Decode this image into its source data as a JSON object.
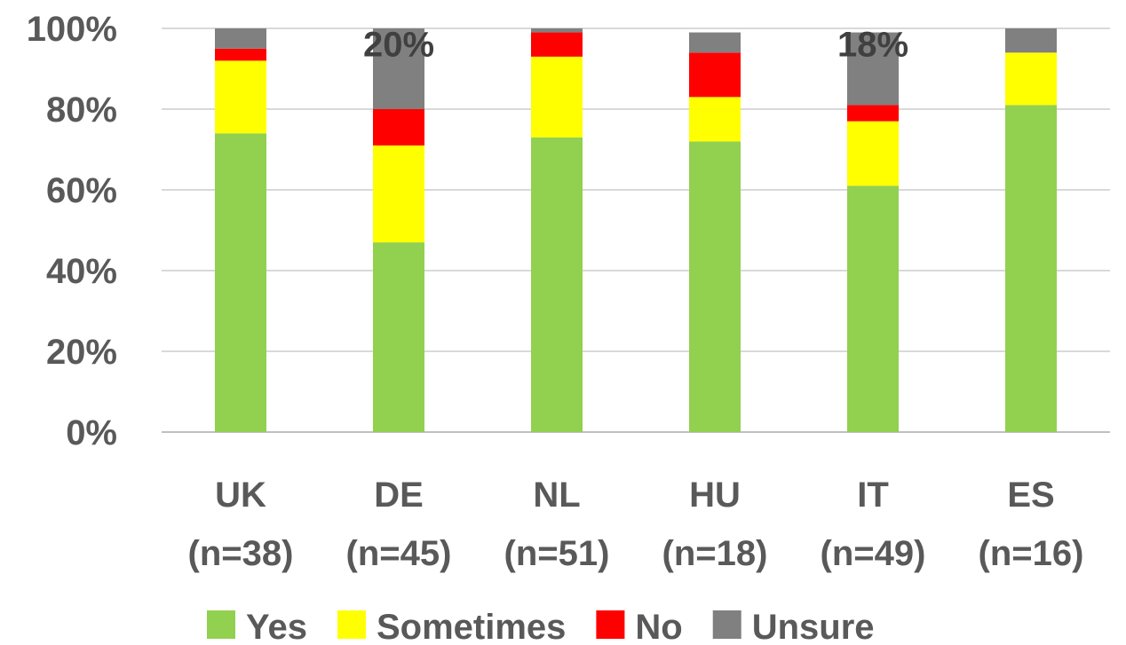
{
  "chart_data": {
    "type": "bar",
    "stacked": true,
    "title": "",
    "xlabel": "",
    "ylabel": "",
    "ylim": [
      0,
      100
    ],
    "yticks": [
      "0%",
      "20%",
      "40%",
      "60%",
      "80%",
      "100%"
    ],
    "grid": true,
    "legend_position": "bottom",
    "categories": [
      [
        "UK",
        "(n=38)"
      ],
      [
        "DE",
        "(n=45)"
      ],
      [
        "NL",
        "(n=51)"
      ],
      [
        "HU",
        "(n=18)"
      ],
      [
        "IT",
        "(n=49)"
      ],
      [
        "ES",
        "(n=16)"
      ]
    ],
    "series": [
      {
        "name": "Yes",
        "color": "#92d050",
        "values": [
          74,
          47,
          73,
          72,
          61,
          81
        ]
      },
      {
        "name": "Sometimes",
        "color": "#ffff00",
        "values": [
          18,
          24,
          20,
          11,
          16,
          13
        ]
      },
      {
        "name": "No",
        "color": "#ff0000",
        "values": [
          3,
          9,
          6,
          11,
          4,
          0
        ]
      },
      {
        "name": "Unsure",
        "color": "#808080",
        "values": [
          5,
          20,
          1,
          5,
          18,
          6
        ]
      }
    ],
    "data_labels": [
      {
        "category_index": 1,
        "series": "Unsure",
        "text": "20%"
      },
      {
        "category_index": 4,
        "series": "Unsure",
        "text": "18%"
      }
    ]
  }
}
